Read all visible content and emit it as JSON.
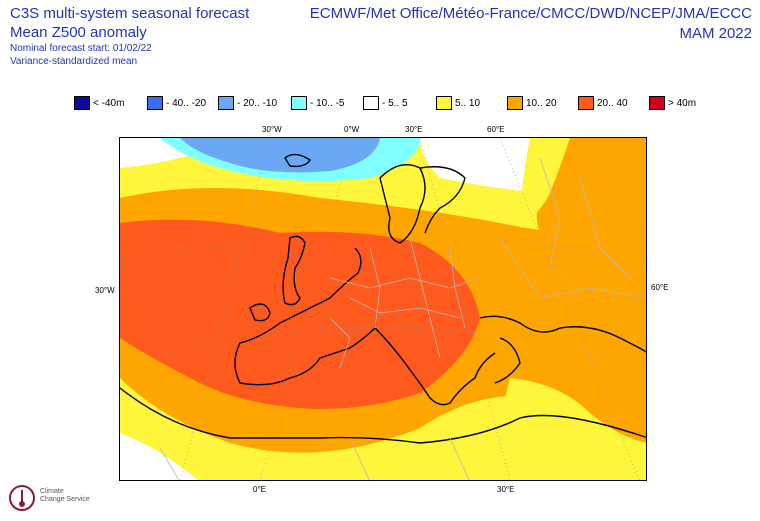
{
  "header": {
    "title_line1": "C3S multi-system seasonal forecast",
    "title_line2": "Mean Z500 anomaly",
    "nominal_start": "Nominal forecast start: 01/02/22",
    "method": "Variance-standardized mean",
    "centres": "ECMWF/Met Office/Météo-France/CMCC/DWD/NCEP/JMA/ECCC",
    "season": "MAM 2022"
  },
  "legend": [
    {
      "label": "< -40m",
      "color": "#0d0d9a"
    },
    {
      "label": "- 40.. -20",
      "color": "#3a6cf5"
    },
    {
      "label": "- 20.. -10",
      "color": "#6aa8f3"
    },
    {
      "label": "- 10.. -5",
      "color": "#7fffff"
    },
    {
      "label": "- 5.. 5",
      "color": "#ffffff"
    },
    {
      "label": "5.. 10",
      "color": "#fff53a"
    },
    {
      "label": "10.. 20",
      "color": "#ffa500"
    },
    {
      "label": "20.. 40",
      "color": "#ff5a1e"
    },
    {
      "label": "> 40m",
      "color": "#d2001e"
    }
  ],
  "axes": {
    "top": [
      "30°W",
      "0°W",
      "30°E",
      "60°E"
    ],
    "left": "30°W",
    "right": "60°E",
    "bottom": [
      "0°E",
      "30°E"
    ]
  },
  "logo": {
    "line1": "Climate",
    "line2": "Change Service"
  }
}
